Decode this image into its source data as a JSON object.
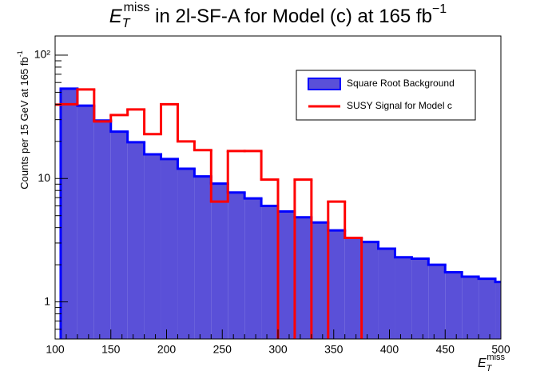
{
  "chart_data": {
    "type": "histogram",
    "title": {
      "symbol": "E",
      "sub": "T",
      "sup": "miss",
      "text": " in 2l-SF-A for Model (c) at 165 fb",
      "sup2": "−1"
    },
    "x_label": {
      "symbol": "E",
      "sub": "T",
      "sup": "miss"
    },
    "y_label": {
      "text": "Counts per 15 GeV at 165 fb",
      "sup": "-1"
    },
    "bins": [
      90,
      105,
      120,
      135,
      150,
      165,
      180,
      195,
      210,
      225,
      240,
      255,
      270,
      285,
      300,
      315,
      330,
      345,
      360,
      375,
      390,
      405,
      420,
      435,
      450,
      465,
      480,
      495,
      510
    ],
    "series": [
      {
        "name": "Square Root Background",
        "color": "#0000ff",
        "fill": "#5a50d8",
        "values": [
          0,
          53.5,
          39,
          29.5,
          24,
          19.7,
          15.7,
          14.4,
          12,
          10.4,
          9.1,
          7.7,
          6.9,
          6,
          5.4,
          4.85,
          4.4,
          3.8,
          3.3,
          3.06,
          2.7,
          2.3,
          2.24,
          2.0,
          1.74,
          1.6,
          1.54,
          1.45
        ]
      },
      {
        "name": "SUSY Signal for Model c",
        "color": "#ff0000",
        "values": [
          39.7,
          40,
          52.7,
          29,
          32.7,
          36.3,
          22.9,
          40,
          20,
          17,
          6.5,
          16.7,
          16.7,
          9.8,
          0,
          9.8,
          0,
          6.5,
          3.3,
          0,
          0,
          0,
          0,
          0,
          0,
          0,
          0,
          0
        ]
      }
    ],
    "xlim": [
      100,
      500
    ],
    "xticks": [
      100,
      150,
      200,
      250,
      300,
      350,
      400,
      450,
      500
    ],
    "ylim": [
      0.5,
      143
    ],
    "yticks": [
      1,
      10,
      {
        "value": 100,
        "label": "10²"
      }
    ],
    "log_y": true,
    "legend": "upper right"
  }
}
